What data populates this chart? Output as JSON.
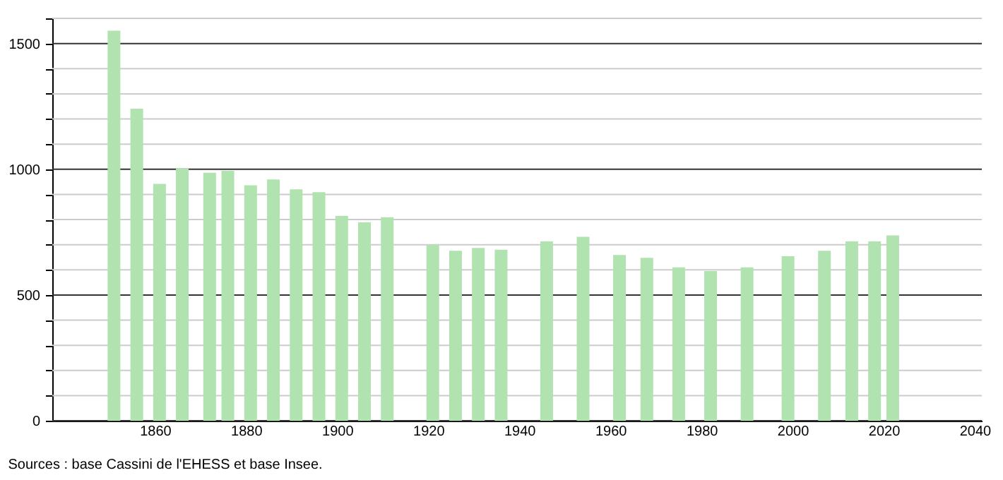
{
  "chart_data": {
    "type": "bar",
    "x": [
      1851,
      1856,
      1861,
      1866,
      1872,
      1876,
      1881,
      1886,
      1891,
      1896,
      1901,
      1906,
      1911,
      1921,
      1926,
      1931,
      1936,
      1946,
      1954,
      1962,
      1968,
      1975,
      1982,
      1990,
      1999,
      2007,
      2013,
      2018,
      2022
    ],
    "values": [
      1551,
      1241,
      942,
      1003,
      986,
      994,
      936,
      959,
      920,
      909,
      815,
      789,
      809,
      698,
      676,
      687,
      680,
      713,
      731,
      659,
      648,
      610,
      595,
      610,
      654,
      676,
      713,
      713,
      737
    ],
    "color": "#b0e3b0",
    "xlim": [
      1839,
      2040
    ],
    "xticks": [
      1860,
      1880,
      1900,
      1920,
      1940,
      1960,
      1980,
      2000,
      2020,
      2040
    ],
    "ylim": [
      0,
      1600
    ],
    "yticks": [
      0,
      {
        "value": 100,
        "label": null
      },
      {
        "value": 200,
        "label": null
      },
      {
        "value": 300,
        "label": null
      },
      {
        "value": 400,
        "label": null
      },
      500,
      {
        "value": 600,
        "label": null
      },
      {
        "value": 700,
        "label": null
      },
      {
        "value": 800,
        "label": null
      },
      {
        "value": 900,
        "label": null
      },
      1000,
      {
        "value": 1100,
        "label": null
      },
      {
        "value": 1200,
        "label": null
      },
      {
        "value": 1300,
        "label": null
      },
      {
        "value": 1400,
        "label": null
      },
      1500,
      {
        "value": 1600,
        "label": null
      }
    ],
    "grid": "y",
    "annotations": [
      "Sources : base Cassini de l'EHESS et base Insee."
    ]
  }
}
